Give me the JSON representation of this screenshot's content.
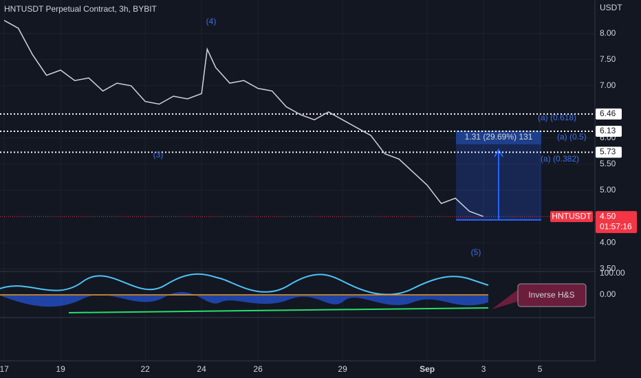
{
  "chart_data": {
    "type": "line",
    "title": "HNTUSDT Perpetual Contract, 3h, BYBIT",
    "currency": "USDT",
    "symbol": "HNTUSDT",
    "countdown": "01:57:16",
    "color": "#d1d4dc",
    "x": [
      0,
      0.5,
      1,
      1.5,
      2,
      2.5,
      3,
      3.5,
      4,
      4.5,
      5,
      5.5,
      6,
      6.5,
      7,
      7.2,
      7.5,
      8,
      8.5,
      9,
      9.5,
      10,
      10.5,
      11,
      11.5,
      12,
      12.5,
      13,
      13.5,
      14,
      14.5,
      15,
      15.5,
      16,
      16.5,
      17
    ],
    "values": [
      8.25,
      8.1,
      7.6,
      7.2,
      7.3,
      7.1,
      7.15,
      6.9,
      7.05,
      7.0,
      6.7,
      6.65,
      6.8,
      6.75,
      6.85,
      7.7,
      7.35,
      7.05,
      7.1,
      6.95,
      6.9,
      6.6,
      6.45,
      6.35,
      6.5,
      6.35,
      6.2,
      6.05,
      5.7,
      5.6,
      5.35,
      5.1,
      4.75,
      4.85,
      4.6,
      4.5
    ],
    "xlim": [
      -0.15,
      20.95
    ],
    "xticks": [
      {
        "value": 0,
        "label": "17"
      },
      {
        "value": 2,
        "label": "19"
      },
      {
        "value": 5,
        "label": "22"
      },
      {
        "value": 7,
        "label": "24"
      },
      {
        "value": 9,
        "label": "26"
      },
      {
        "value": 12,
        "label": "29"
      },
      {
        "value": 15,
        "label": "Sep"
      },
      {
        "value": 17,
        "label": "3"
      },
      {
        "value": 19,
        "label": "5"
      }
    ],
    "ylim": [
      3.45,
      8.64
    ],
    "yticks": [
      {
        "value": 8,
        "label": "8.00"
      },
      {
        "value": 7.5,
        "label": "7.50"
      },
      {
        "value": 7,
        "label": "7.00"
      },
      {
        "value": 6,
        "label": "6.00"
      },
      {
        "value": 5.5,
        "label": "5.50"
      },
      {
        "value": 5,
        "label": "5.00"
      },
      {
        "value": 4,
        "label": "4.00"
      },
      {
        "value": 3.5,
        "label": "3.50"
      }
    ],
    "levels": [
      6.46,
      6.13,
      5.73
    ],
    "last_price": {
      "value": 4.5,
      "label": "4.50"
    },
    "measure": "1.31 (29.69%) 131",
    "annotations": [
      "(4)",
      "(3)",
      "(5)",
      "(a) (0.618)",
      "(a) (0.5)",
      "(a) (0.382)"
    ],
    "oscillator_ticks": [
      "100.00",
      "0.00"
    ],
    "callout": "Inverse H&S",
    "grid": true
  }
}
